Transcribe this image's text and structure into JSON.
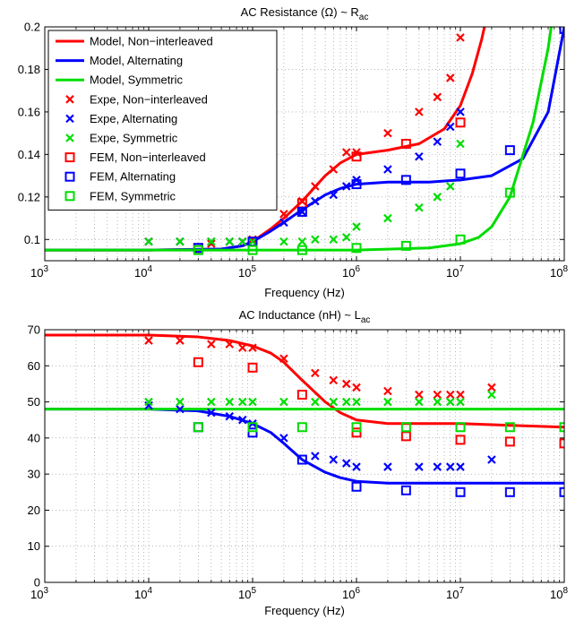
{
  "colors": {
    "red": "#ff0000",
    "blue": "#0000ff",
    "green": "#00dd00"
  },
  "chart_data": [
    {
      "type": "line",
      "title": "AC Resistance (Ω) ~ R",
      "title_sub": "ac",
      "xlabel": "Frequency (Hz)",
      "ylabel": "",
      "xscale": "log",
      "xlim": [
        1000,
        100000000
      ],
      "ylim": [
        0.09,
        0.2
      ],
      "yticks": [
        "0.1",
        "0.12",
        "0.14",
        "0.16",
        "0.18",
        "0.2"
      ],
      "ytick_values": [
        0.1,
        0.12,
        0.14,
        0.16,
        0.18,
        0.2
      ],
      "xticks": [
        {
          "base": "10",
          "exp": "3",
          "value": 1000
        },
        {
          "base": "10",
          "exp": "4",
          "value": 10000
        },
        {
          "base": "10",
          "exp": "5",
          "value": 100000
        },
        {
          "base": "10",
          "exp": "6",
          "value": 1000000
        },
        {
          "base": "10",
          "exp": "7",
          "value": 10000000
        },
        {
          "base": "10",
          "exp": "8",
          "value": 100000000
        }
      ],
      "grid": true,
      "legend_position": "top-left",
      "series": [
        {
          "name": "Model, Non−interleaved",
          "kind": "line",
          "color": "red",
          "x": [
            1000,
            10000,
            50000,
            80000,
            100000,
            150000,
            200000,
            300000,
            500000,
            700000,
            1000000,
            2000000,
            4000000,
            7000000,
            10000000,
            13000000,
            16000000,
            20000000
          ],
          "y": [
            0.095,
            0.095,
            0.0955,
            0.097,
            0.099,
            0.105,
            0.11,
            0.118,
            0.13,
            0.136,
            0.14,
            0.142,
            0.145,
            0.152,
            0.163,
            0.178,
            0.194,
            0.215
          ]
        },
        {
          "name": "Model, Alternating",
          "kind": "line",
          "color": "blue",
          "x": [
            1000,
            10000,
            50000,
            80000,
            100000,
            150000,
            200000,
            300000,
            500000,
            700000,
            1000000,
            2000000,
            5000000,
            10000000,
            20000000,
            40000000,
            70000000,
            100000000
          ],
          "y": [
            0.095,
            0.095,
            0.0955,
            0.097,
            0.099,
            0.104,
            0.108,
            0.114,
            0.121,
            0.124,
            0.126,
            0.127,
            0.127,
            0.128,
            0.13,
            0.138,
            0.16,
            0.2
          ]
        },
        {
          "name": "Model, Symmetric",
          "kind": "line",
          "color": "green",
          "x": [
            1000,
            100000,
            1000000,
            5000000,
            10000000,
            15000000,
            20000000,
            30000000,
            50000000,
            70000000,
            80000000
          ],
          "y": [
            0.095,
            0.095,
            0.095,
            0.096,
            0.098,
            0.101,
            0.106,
            0.12,
            0.155,
            0.19,
            0.21
          ]
        },
        {
          "name": "Expe, Non−interleaved",
          "kind": "x",
          "color": "red",
          "x": [
            10000,
            20000,
            40000,
            60000,
            80000,
            100000,
            200000,
            300000,
            400000,
            600000,
            800000,
            1000000,
            2000000,
            4000000,
            6000000,
            8000000,
            10000000
          ],
          "y": [
            0.099,
            0.099,
            0.098,
            0.099,
            0.099,
            0.1,
            0.112,
            0.118,
            0.125,
            0.133,
            0.141,
            0.141,
            0.15,
            0.16,
            0.167,
            0.176,
            0.195
          ]
        },
        {
          "name": "Expe, Alternating",
          "kind": "x",
          "color": "blue",
          "x": [
            10000,
            20000,
            40000,
            60000,
            80000,
            100000,
            200000,
            300000,
            400000,
            600000,
            800000,
            1000000,
            2000000,
            4000000,
            6000000,
            8000000,
            10000000
          ],
          "y": [
            0.099,
            0.099,
            0.099,
            0.099,
            0.099,
            0.099,
            0.108,
            0.113,
            0.118,
            0.121,
            0.125,
            0.128,
            0.133,
            0.139,
            0.146,
            0.153,
            0.16
          ]
        },
        {
          "name": "Expe, Symmetric",
          "kind": "x",
          "color": "green",
          "x": [
            10000,
            20000,
            40000,
            60000,
            80000,
            100000,
            200000,
            300000,
            400000,
            600000,
            800000,
            1000000,
            2000000,
            4000000,
            6000000,
            8000000,
            10000000
          ],
          "y": [
            0.099,
            0.099,
            0.099,
            0.099,
            0.099,
            0.099,
            0.099,
            0.099,
            0.1,
            0.1,
            0.101,
            0.106,
            0.11,
            0.115,
            0.12,
            0.125,
            0.145
          ]
        },
        {
          "name": "FEM, Non−interleaved",
          "kind": "square",
          "color": "red",
          "x": [
            30000,
            100000,
            300000,
            1000000,
            3000000,
            10000000
          ],
          "y": [
            0.096,
            0.099,
            0.117,
            0.139,
            0.145,
            0.155
          ]
        },
        {
          "name": "FEM, Alternating",
          "kind": "square",
          "color": "blue",
          "x": [
            30000,
            100000,
            300000,
            1000000,
            3000000,
            10000000,
            30000000,
            100000000
          ],
          "y": [
            0.096,
            0.099,
            0.113,
            0.126,
            0.128,
            0.131,
            0.142,
            0.199
          ]
        },
        {
          "name": "FEM, Symmetric",
          "kind": "square",
          "color": "green",
          "x": [
            30000,
            100000,
            300000,
            1000000,
            3000000,
            10000000,
            30000000
          ],
          "y": [
            0.095,
            0.095,
            0.095,
            0.096,
            0.097,
            0.1,
            0.122
          ]
        }
      ]
    },
    {
      "type": "line",
      "title": "AC Inductance (nH) ~ L",
      "title_sub": "ac",
      "xlabel": "Frequency (Hz)",
      "ylabel": "",
      "xscale": "log",
      "xlim": [
        1000,
        100000000
      ],
      "ylim": [
        0,
        70
      ],
      "yticks": [
        "0",
        "10",
        "20",
        "30",
        "40",
        "50",
        "60",
        "70"
      ],
      "ytick_values": [
        0,
        10,
        20,
        30,
        40,
        50,
        60,
        70
      ],
      "xticks": [
        {
          "base": "10",
          "exp": "3",
          "value": 1000
        },
        {
          "base": "10",
          "exp": "4",
          "value": 10000
        },
        {
          "base": "10",
          "exp": "5",
          "value": 100000
        },
        {
          "base": "10",
          "exp": "6",
          "value": 1000000
        },
        {
          "base": "10",
          "exp": "7",
          "value": 10000000
        },
        {
          "base": "10",
          "exp": "8",
          "value": 100000000
        }
      ],
      "grid": true,
      "series": [
        {
          "kind": "line",
          "color": "red",
          "x": [
            1000,
            10000,
            30000,
            60000,
            100000,
            150000,
            200000,
            300000,
            500000,
            700000,
            1000000,
            2000000,
            5000000,
            10000000,
            30000000,
            100000000
          ],
          "y": [
            68.5,
            68.5,
            68,
            67,
            65.5,
            63.5,
            61,
            56,
            50,
            47,
            45,
            44,
            44,
            44,
            43.5,
            43
          ]
        },
        {
          "kind": "line",
          "color": "blue",
          "x": [
            1000,
            10000,
            30000,
            60000,
            100000,
            150000,
            200000,
            300000,
            500000,
            700000,
            1000000,
            2000000,
            5000000,
            10000000,
            30000000,
            100000000
          ],
          "y": [
            48,
            48,
            47.5,
            46,
            44,
            41.5,
            38.5,
            34,
            30.5,
            29,
            28,
            27.5,
            27.5,
            27.5,
            27.5,
            27.5
          ]
        },
        {
          "kind": "line",
          "color": "green",
          "x": [
            1000,
            10000,
            100000,
            1000000,
            10000000,
            100000000
          ],
          "y": [
            48,
            48,
            48,
            48,
            48,
            48
          ]
        },
        {
          "kind": "x",
          "color": "red",
          "x": [
            10000,
            20000,
            40000,
            60000,
            80000,
            100000,
            200000,
            400000,
            600000,
            800000,
            1000000,
            2000000,
            4000000,
            6000000,
            8000000,
            10000000,
            20000000
          ],
          "y": [
            67,
            67,
            66,
            66,
            65,
            65,
            62,
            58,
            56,
            55,
            54,
            53,
            52,
            52,
            52,
            52,
            54
          ]
        },
        {
          "kind": "x",
          "color": "blue",
          "x": [
            10000,
            20000,
            40000,
            60000,
            80000,
            100000,
            200000,
            400000,
            600000,
            800000,
            1000000,
            2000000,
            4000000,
            6000000,
            8000000,
            10000000,
            20000000
          ],
          "y": [
            49,
            48,
            47,
            46,
            45,
            44,
            40,
            35,
            34,
            33,
            32,
            32,
            32,
            32,
            32,
            32,
            34
          ]
        },
        {
          "kind": "x",
          "color": "green",
          "x": [
            10000,
            20000,
            40000,
            60000,
            80000,
            100000,
            200000,
            400000,
            600000,
            800000,
            1000000,
            2000000,
            4000000,
            6000000,
            8000000,
            10000000,
            20000000
          ],
          "y": [
            50,
            50,
            50,
            50,
            50,
            50,
            50,
            50,
            50,
            50,
            50,
            50,
            50,
            50,
            50,
            50,
            52
          ]
        },
        {
          "kind": "square",
          "color": "red",
          "x": [
            30000,
            100000,
            300000,
            1000000,
            3000000,
            10000000,
            30000000,
            100000000
          ],
          "y": [
            61,
            59.5,
            52,
            41.5,
            40.5,
            39.5,
            39,
            38.5
          ]
        },
        {
          "kind": "square",
          "color": "blue",
          "x": [
            30000,
            100000,
            300000,
            1000000,
            3000000,
            10000000,
            30000000,
            100000000
          ],
          "y": [
            43,
            41.5,
            34,
            26.5,
            25.5,
            25,
            25,
            25
          ]
        },
        {
          "kind": "square",
          "color": "green",
          "x": [
            30000,
            100000,
            300000,
            1000000,
            3000000,
            10000000,
            30000000,
            100000000
          ],
          "y": [
            43,
            43,
            43,
            43,
            43,
            43,
            43,
            43
          ]
        }
      ]
    }
  ]
}
